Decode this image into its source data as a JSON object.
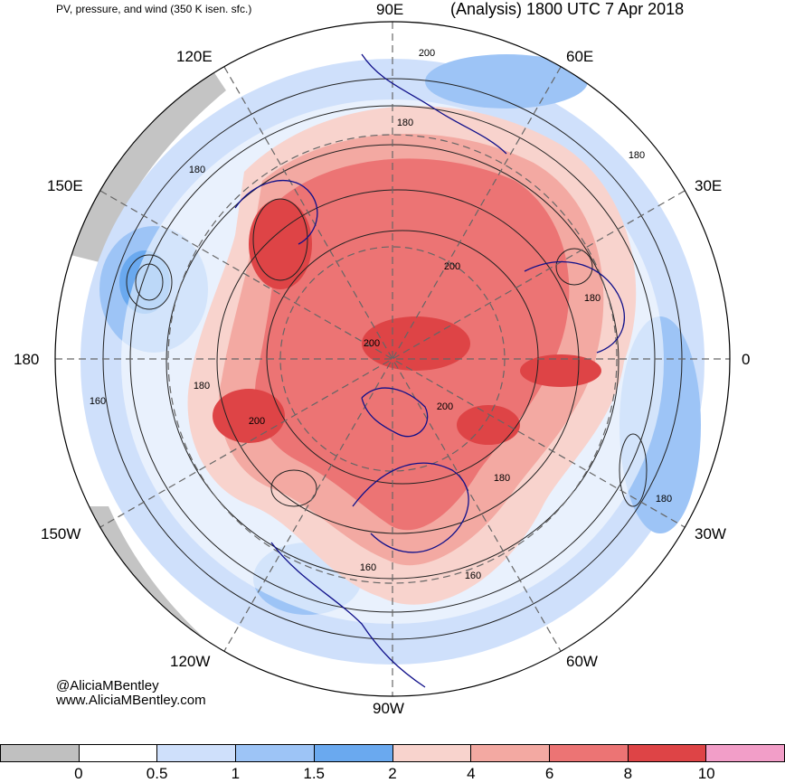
{
  "header": {
    "subtitle": "PV, pressure, and wind (350 K isen. sfc.)",
    "title": "(Analysis) 1800 UTC 7 Apr 2018"
  },
  "longitude_labels": {
    "lon_90e": "90E",
    "lon_120e": "120E",
    "lon_60e": "60E",
    "lon_150e": "150E",
    "lon_30e": "30E",
    "lon_180": "180",
    "lon_0": "0",
    "lon_150w": "150W",
    "lon_30w": "30W",
    "lon_120w": "120W",
    "lon_60w": "60W",
    "lon_90w": "90W"
  },
  "contour_labels": {
    "c1": "200",
    "c2": "180",
    "c3": "180",
    "c4": "180",
    "c5": "200",
    "c6": "180",
    "c7": "200",
    "c8": "180",
    "c9": "160",
    "c10": "200",
    "c11": "200",
    "c12": "180",
    "c13": "180",
    "c14": "160",
    "c15": "160"
  },
  "credits": {
    "handle": "@AliciaMBentley",
    "website": "www.AliciaMBentley.com"
  },
  "colorbar": {
    "colors": [
      "#c0c0c0",
      "#ffffff",
      "#cfe0fb",
      "#9dc4f6",
      "#6aa9ef",
      "#f8d3cd",
      "#f3a9a2",
      "#ec7474",
      "#de4446",
      "#f29ec8"
    ],
    "ticks": [
      "0",
      "0.5",
      "1",
      "1.5",
      "2",
      "4",
      "6",
      "8",
      "10"
    ]
  }
}
